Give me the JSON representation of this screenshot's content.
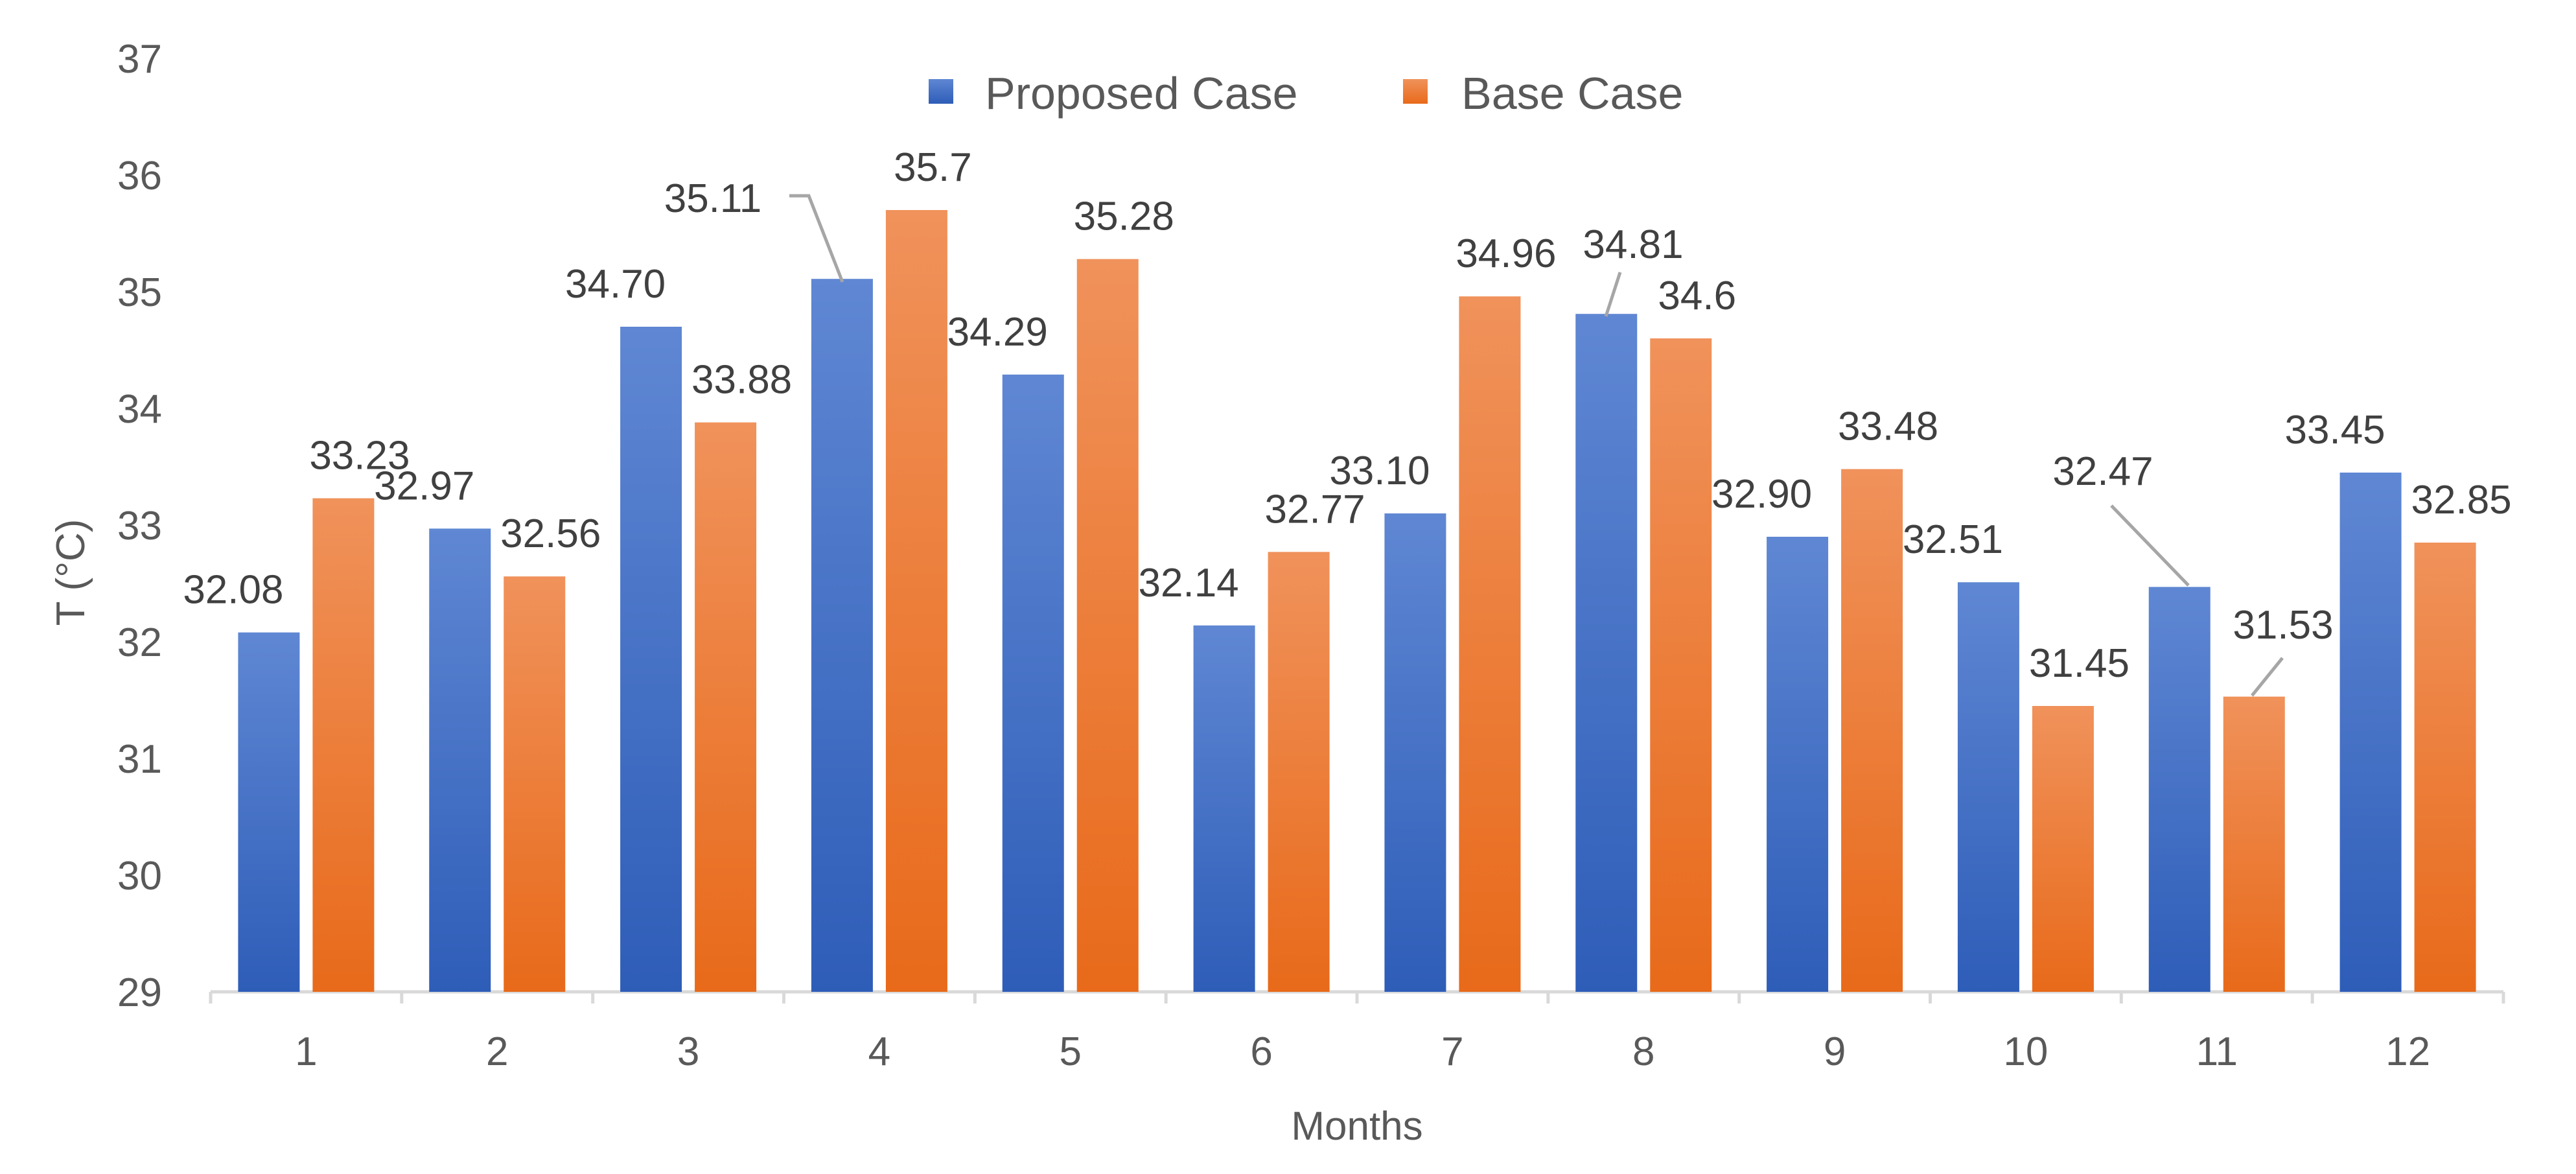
{
  "chart_data": {
    "type": "bar",
    "xlabel": "Months",
    "ylabel": "T (°C)",
    "ylim": [
      29,
      37
    ],
    "yticks": [
      29,
      30,
      31,
      32,
      33,
      34,
      35,
      36,
      37
    ],
    "categories": [
      "1",
      "2",
      "3",
      "4",
      "5",
      "6",
      "7",
      "8",
      "9",
      "10",
      "11",
      "12"
    ],
    "grid": false,
    "legend_position": "top-center",
    "series": [
      {
        "name": "Proposed Case",
        "color": "#4472C4",
        "values": [
          32.08,
          32.97,
          34.7,
          35.11,
          34.29,
          32.14,
          33.1,
          34.81,
          32.9,
          32.51,
          32.47,
          33.45
        ],
        "labels": [
          "32.08",
          "32.97",
          "34.70",
          "35.11",
          "34.29",
          "32.14",
          "33.10",
          "34.81",
          "32.90",
          "32.51",
          "32.47",
          "33.45"
        ]
      },
      {
        "name": "Base Case",
        "color": "#ED7D31",
        "values": [
          33.23,
          32.56,
          33.88,
          35.7,
          35.28,
          32.77,
          34.96,
          34.6,
          33.48,
          31.45,
          31.53,
          32.85
        ],
        "labels": [
          "33.23",
          "32.56",
          "33.88",
          "35.7",
          "35.28",
          "32.77",
          "34.96",
          "34.6",
          "33.48",
          "31.45",
          "31.53",
          "32.85"
        ]
      }
    ]
  }
}
